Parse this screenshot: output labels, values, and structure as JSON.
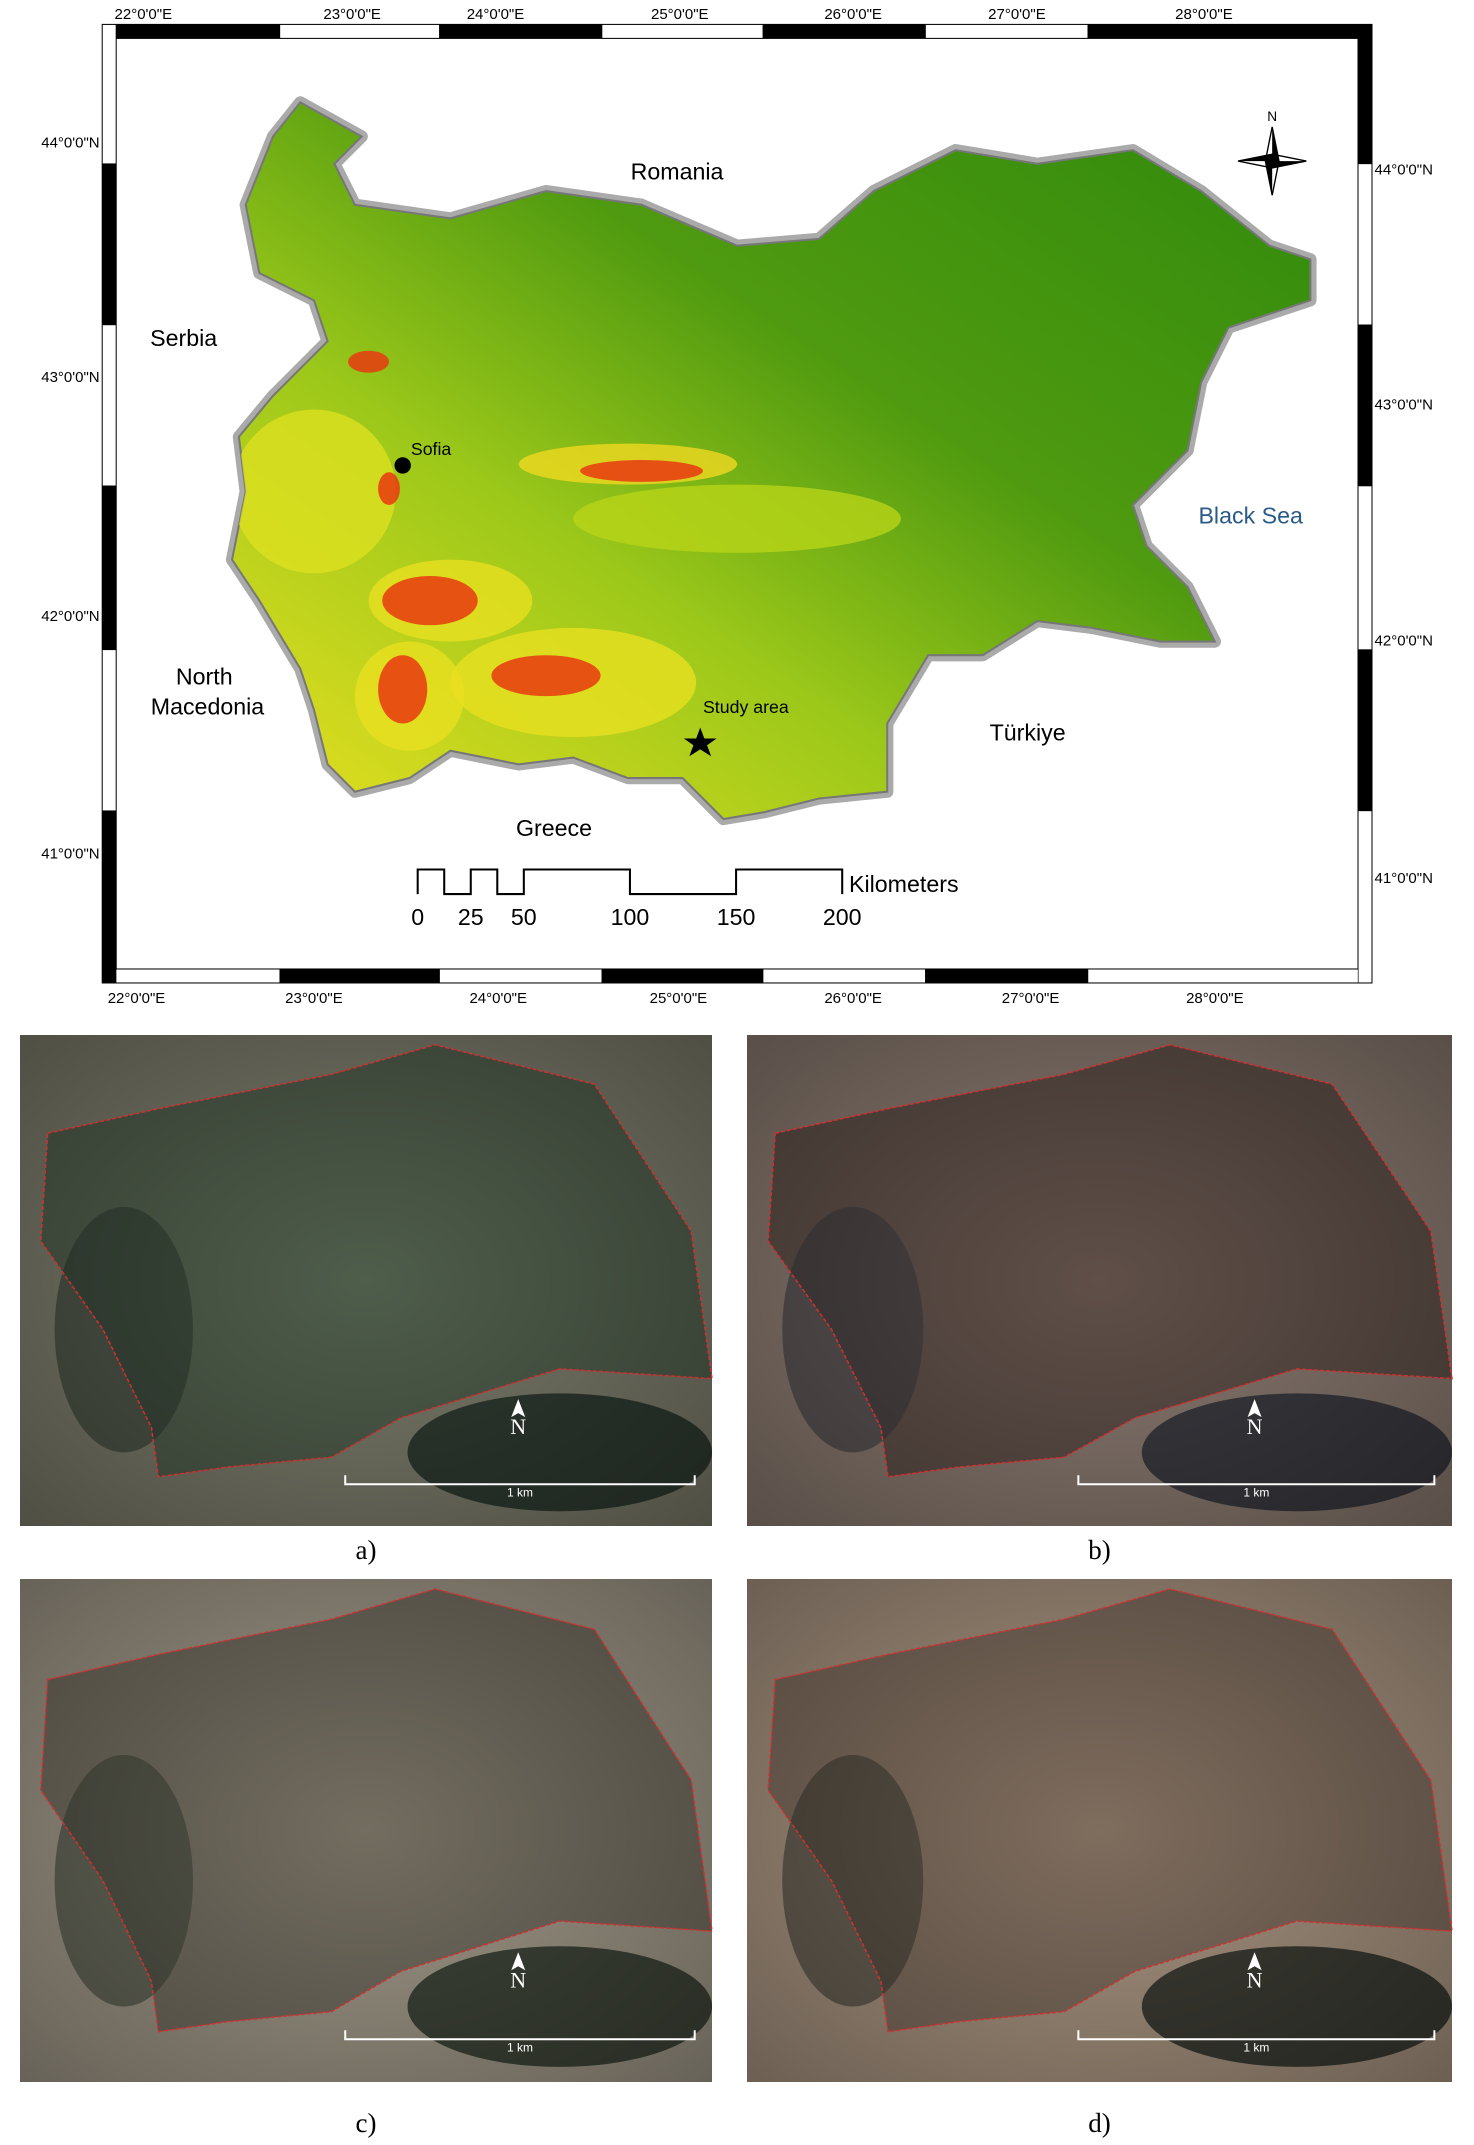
{
  "map": {
    "longitude_labels_top": [
      "22°0'0\"E",
      "23°0'0\"E",
      "24°0'0\"E",
      "25°0'0\"E",
      "26°0'0\"E",
      "27°0'0\"E",
      "28°0'0\"E"
    ],
    "longitude_labels_bottom": [
      "22°0'0\"E",
      "23°0'0\"E",
      "24°0'0\"E",
      "25°0'0\"E",
      "26°0'0\"E",
      "27°0'0\"E",
      "28°0'0\"E"
    ],
    "latitude_labels_left": [
      "44°0'0\"N",
      "43°0'0\"N",
      "42°0'0\"N",
      "41°0'0\"N"
    ],
    "latitude_labels_right": [
      "44°0'0\"N",
      "43°0'0\"N",
      "42°0'0\"N",
      "41°0'0\"N"
    ],
    "places": {
      "romania": "Romania",
      "serbia": "Serbia",
      "north_macedonia": "North Macedonia",
      "greece": "Greece",
      "turkiye": "Türkiye",
      "black_sea": "Black Sea",
      "sofia": "Sofia",
      "study_area": "Study area"
    },
    "north": "N",
    "scale_bar": {
      "ticks": [
        0,
        25,
        50,
        100,
        150,
        200
      ],
      "unit": "Kilometers"
    }
  },
  "panels": [
    {
      "label": "a)",
      "scale": "1 km",
      "north": "N"
    },
    {
      "label": "b)",
      "scale": "1 km",
      "north": "N"
    },
    {
      "label": "c)",
      "scale": "1 km",
      "north": "N"
    },
    {
      "label": "d)",
      "scale": "1 km",
      "north": "N"
    }
  ]
}
